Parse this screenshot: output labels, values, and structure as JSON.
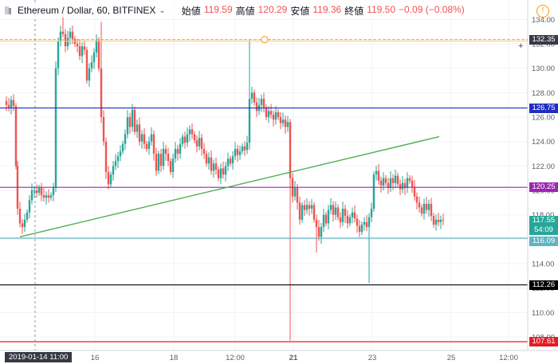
{
  "header": {
    "symbol": "Ethereum / Dollar, 60, BITFINEX",
    "open_label": "始値",
    "open_value": "119.59",
    "high_label": "高値",
    "high_value": "120.29",
    "low_label": "安値",
    "low_value": "119.36",
    "close_label": "終値",
    "close_value": "119.50",
    "change": "−0.09 (−0.08%)"
  },
  "alert_glyph": "!",
  "y_axis": {
    "ticks": [
      "134.00",
      "132.00",
      "130.00",
      "128.00",
      "126.00",
      "124.00",
      "122.00",
      "120.00",
      "118.00",
      "116.00",
      "114.00",
      "112.00",
      "110.00",
      "108.00"
    ]
  },
  "x_axis": {
    "ticks": [
      "16",
      "18",
      "12:00",
      "21",
      "23",
      "25",
      "12:00"
    ],
    "crosshair_date": "2019-01-14   11:00"
  },
  "price_tags": [
    {
      "id": "orange",
      "text": "132.35",
      "bg": "#363a45"
    },
    {
      "id": "blue",
      "text": "126.75",
      "bg": "#1e2ec2"
    },
    {
      "id": "purple",
      "text": "120.25",
      "bg": "#9c27b0"
    },
    {
      "id": "current",
      "text": "117.55",
      "bg": "#26a69a"
    },
    {
      "id": "countdown",
      "text": "54:09",
      "bg": "#26a69a"
    },
    {
      "id": "teal",
      "text": "116.09",
      "bg": "#5fb4c4"
    },
    {
      "id": "black",
      "text": "112.26",
      "bg": "#000000"
    },
    {
      "id": "red",
      "text": "107.61",
      "bg": "#e51c23"
    }
  ],
  "horizontal_lines": [
    {
      "name": "orange-line",
      "price": 132.35,
      "color": "#ff9800",
      "dashed": true
    },
    {
      "name": "blue-line",
      "price": 126.75,
      "color": "#1e2ec2",
      "dashed": false
    },
    {
      "name": "purple-line",
      "price": 120.25,
      "color": "#9c27b0",
      "dashed": false
    },
    {
      "name": "teal-line",
      "price": 116.09,
      "color": "#5fb4c4",
      "dashed": false
    },
    {
      "name": "black-line",
      "price": 112.26,
      "color": "#000000",
      "dashed": false
    },
    {
      "name": "red-line",
      "price": 107.61,
      "color": "#e51c23",
      "dashed": false
    }
  ],
  "trend_line": {
    "from_price": 116.2,
    "to_price": 124.4,
    "color": "#4caf50"
  },
  "colors": {
    "up": "#26a69a",
    "down": "#ef5350"
  },
  "chart_data": {
    "type": "candlestick",
    "ylim": [
      106.5,
      135.2
    ],
    "price_path": [
      [
        0,
        127.3
      ],
      [
        3,
        127.0
      ],
      [
        6,
        126.8
      ],
      [
        9,
        127.4
      ],
      [
        12,
        126.9
      ],
      [
        15,
        122.0
      ],
      [
        17,
        118.5
      ],
      [
        20,
        117.3
      ],
      [
        23,
        117.0
      ],
      [
        26,
        117.6
      ],
      [
        29,
        118.2
      ],
      [
        32,
        119.2
      ],
      [
        35,
        120.0
      ],
      [
        38,
        120.0
      ],
      [
        41,
        119.8
      ],
      [
        44,
        120.2
      ],
      [
        47,
        119.6
      ],
      [
        50,
        119.4
      ],
      [
        53,
        119.6
      ],
      [
        56,
        119.4
      ],
      [
        59,
        119.6
      ],
      [
        62,
        120.2
      ],
      [
        65,
        130.0
      ],
      [
        68,
        132.2
      ],
      [
        71,
        133.0
      ],
      [
        74,
        132.8
      ],
      [
        77,
        131.8
      ],
      [
        80,
        132.5
      ],
      [
        83,
        133.0
      ],
      [
        86,
        132.4
      ],
      [
        89,
        132.0
      ],
      [
        92,
        131.8
      ],
      [
        95,
        131.0
      ],
      [
        98,
        131.8
      ],
      [
        101,
        131.5
      ],
      [
        104,
        129.0
      ],
      [
        107,
        130.0
      ],
      [
        110,
        130.5
      ],
      [
        113,
        131.3
      ],
      [
        116,
        132.3
      ],
      [
        119,
        130.0
      ],
      [
        122,
        126.0
      ],
      [
        125,
        124.0
      ],
      [
        128,
        121.5
      ],
      [
        131,
        120.5
      ],
      [
        134,
        121.3
      ],
      [
        137,
        122.0
      ],
      [
        140,
        122.4
      ],
      [
        143,
        122.8
      ],
      [
        146,
        123.2
      ],
      [
        149,
        123.8
      ],
      [
        152,
        124.6
      ],
      [
        155,
        126.0
      ],
      [
        158,
        125.2
      ],
      [
        161,
        126.6
      ],
      [
        164,
        124.8
      ],
      [
        167,
        125.4
      ],
      [
        170,
        124.0
      ],
      [
        173,
        124.6
      ],
      [
        176,
        123.8
      ],
      [
        179,
        123.4
      ],
      [
        182,
        124.0
      ],
      [
        185,
        124.6
      ],
      [
        188,
        123.0
      ],
      [
        191,
        121.6
      ],
      [
        194,
        123.0
      ],
      [
        197,
        122.0
      ],
      [
        200,
        123.4
      ],
      [
        203,
        123.0
      ],
      [
        206,
        122.4
      ],
      [
        209,
        121.5
      ],
      [
        212,
        122.6
      ],
      [
        215,
        123.4
      ],
      [
        218,
        123.0
      ],
      [
        221,
        123.8
      ],
      [
        224,
        124.4
      ],
      [
        227,
        123.9
      ],
      [
        230,
        124.6
      ],
      [
        233,
        125.0
      ],
      [
        236,
        124.6
      ],
      [
        239,
        124.1
      ],
      [
        242,
        123.6
      ],
      [
        245,
        124.3
      ],
      [
        248,
        123.4
      ],
      [
        251,
        123.0
      ],
      [
        254,
        122.2
      ],
      [
        257,
        122.7
      ],
      [
        260,
        121.6
      ],
      [
        263,
        122.2
      ],
      [
        266,
        121.7
      ],
      [
        269,
        121.0
      ],
      [
        272,
        121.8
      ],
      [
        275,
        121.3
      ],
      [
        278,
        122.0
      ],
      [
        281,
        122.6
      ],
      [
        284,
        122.2
      ],
      [
        287,
        122.8
      ],
      [
        290,
        123.4
      ],
      [
        293,
        122.9
      ],
      [
        296,
        123.2
      ],
      [
        299,
        123.6
      ],
      [
        302,
        123.3
      ],
      [
        305,
        123.9
      ],
      [
        308,
        127.5
      ],
      [
        311,
        128.0
      ],
      [
        314,
        127.2
      ],
      [
        317,
        126.5
      ],
      [
        320,
        127.0
      ],
      [
        323,
        127.5
      ],
      [
        326,
        126.8
      ],
      [
        329,
        126.0
      ],
      [
        332,
        126.5
      ],
      [
        335,
        126.2
      ],
      [
        338,
        125.8
      ],
      [
        341,
        126.4
      ],
      [
        344,
        126.0
      ],
      [
        347,
        125.5
      ],
      [
        350,
        125.8
      ],
      [
        353,
        125.2
      ],
      [
        356,
        125.6
      ],
      [
        359,
        121.0
      ],
      [
        362,
        119.5
      ],
      [
        365,
        120.2
      ],
      [
        368,
        119.0
      ],
      [
        371,
        117.6
      ],
      [
        374,
        118.8
      ],
      [
        377,
        118.4
      ],
      [
        380,
        118.8
      ],
      [
        383,
        118.5
      ],
      [
        386,
        118.8
      ],
      [
        389,
        117.6
      ],
      [
        392,
        117.0
      ],
      [
        395,
        116.2
      ],
      [
        398,
        117.0
      ],
      [
        401,
        118.0
      ],
      [
        404,
        117.3
      ],
      [
        407,
        118.4
      ],
      [
        410,
        118.8
      ],
      [
        413,
        118.0
      ],
      [
        416,
        118.6
      ],
      [
        419,
        117.8
      ],
      [
        422,
        117.4
      ],
      [
        425,
        118.5
      ],
      [
        428,
        117.9
      ],
      [
        431,
        117.3
      ],
      [
        434,
        117.8
      ],
      [
        437,
        118.2
      ],
      [
        440,
        117.7
      ],
      [
        443,
        117.1
      ],
      [
        446,
        116.6
      ],
      [
        449,
        117.2
      ],
      [
        452,
        117.4
      ],
      [
        455,
        117.0
      ],
      [
        458,
        117.8
      ],
      [
        461,
        118.5
      ],
      [
        464,
        121.3
      ],
      [
        467,
        121.6
      ],
      [
        470,
        120.8
      ],
      [
        473,
        120.4
      ],
      [
        476,
        121.0
      ],
      [
        479,
        120.6
      ],
      [
        482,
        120.2
      ],
      [
        485,
        121.0
      ],
      [
        488,
        120.6
      ],
      [
        491,
        121.2
      ],
      [
        494,
        120.5
      ],
      [
        497,
        120.1
      ],
      [
        500,
        120.6
      ],
      [
        503,
        120.2
      ],
      [
        506,
        121.0
      ],
      [
        509,
        120.8
      ],
      [
        512,
        120.3
      ],
      [
        515,
        119.5
      ],
      [
        518,
        119.0
      ],
      [
        521,
        118.6
      ],
      [
        524,
        118.1
      ],
      [
        527,
        118.9
      ],
      [
        530,
        118.4
      ],
      [
        533,
        118.9
      ],
      [
        536,
        117.9
      ],
      [
        539,
        117.2
      ],
      [
        542,
        117.6
      ],
      [
        545,
        117.4
      ],
      [
        548,
        117.6
      ],
      [
        551,
        117.55
      ]
    ],
    "spikes": [
      {
        "index_x": 73,
        "high": 134.6
      },
      {
        "index_x": 122,
        "high": 133.8
      },
      {
        "index_x": 308,
        "high": 132.3
      },
      {
        "index_x": 358,
        "low": 107.7
      },
      {
        "index_x": 393,
        "low": 114.9
      },
      {
        "index_x": 457,
        "low": 112.4
      }
    ]
  }
}
